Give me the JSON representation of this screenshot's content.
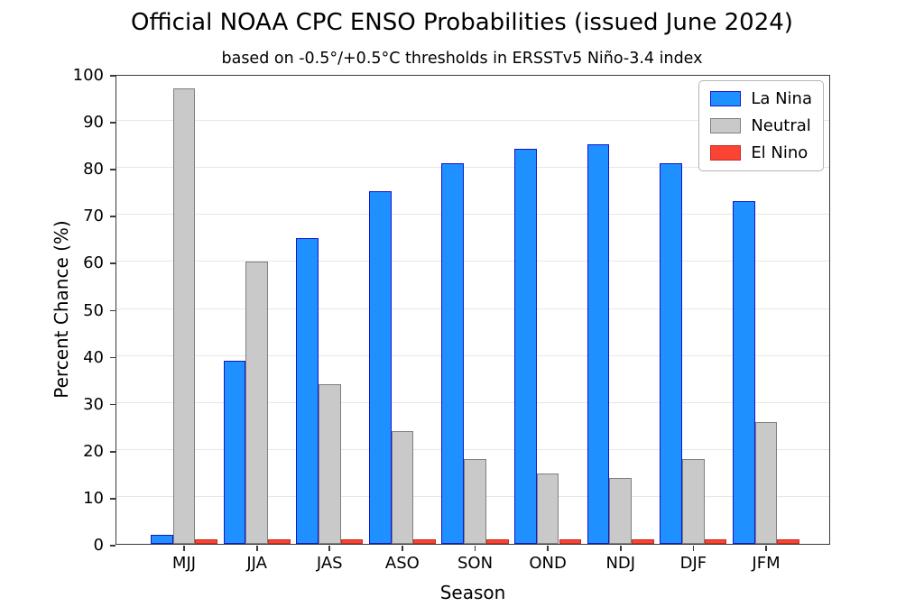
{
  "chart_data": {
    "type": "bar",
    "title": "Official NOAA CPC ENSO Probabilities (issued June 2024)",
    "subtitle": "based on -0.5°/+0.5°C thresholds in ERSSTv5 Niño-3.4 index",
    "xlabel": "Season",
    "ylabel": "Percent Chance (%)",
    "categories": [
      "MJJ",
      "JJA",
      "JAS",
      "ASO",
      "SON",
      "OND",
      "NDJ",
      "DJF",
      "JFM"
    ],
    "series": [
      {
        "name": "La Nina",
        "color": "#1e90ff",
        "edge_color": "#1515cd",
        "values": [
          2,
          39,
          65,
          75,
          81,
          84,
          85,
          81,
          73
        ]
      },
      {
        "name": "Neutral",
        "color": "#c9c9c9",
        "edge_color": "#7f7f7f",
        "values": [
          97,
          60,
          34,
          24,
          18,
          15,
          14,
          18,
          26
        ]
      },
      {
        "name": "El Nino",
        "color": "#fb4434",
        "edge_color": "#c62b1e",
        "values": [
          1,
          1,
          1,
          1,
          1,
          1,
          1,
          1,
          1
        ]
      }
    ],
    "ylim": [
      0,
      100
    ],
    "yticks": [
      0,
      10,
      20,
      30,
      40,
      50,
      60,
      70,
      80,
      90,
      100
    ],
    "grid": true,
    "legend_position": "upper right"
  }
}
